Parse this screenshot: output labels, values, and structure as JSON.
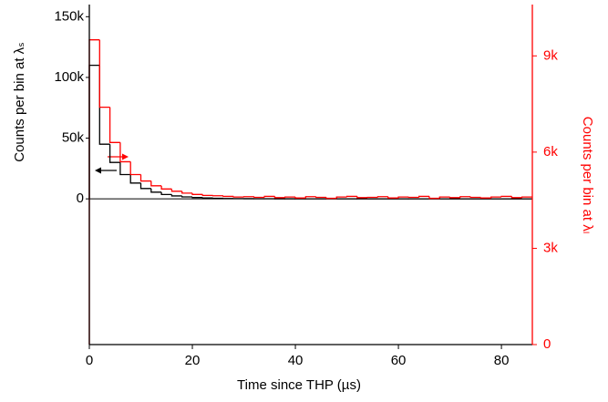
{
  "chart_data": {
    "type": "histogram",
    "xlabel": "Time since THP (µs)",
    "ylabel": "Counts per bin at λₛ",
    "y2label": "Counts per bin at λₗ",
    "bins": [
      0,
      2,
      4,
      6,
      8,
      10,
      12,
      14,
      16,
      18,
      20,
      22,
      24,
      26,
      28,
      30,
      32,
      34,
      36,
      38,
      40,
      42,
      44,
      46,
      48,
      50,
      52,
      54,
      56,
      58,
      60,
      62,
      64,
      66,
      68,
      70,
      72,
      74,
      76,
      78,
      80,
      82,
      84,
      86
    ],
    "series": [
      {
        "color": "#000000",
        "values": [
          110000,
          45000,
          30000,
          20000,
          13000,
          8500,
          5500,
          3600,
          2400,
          1600,
          1100,
          700,
          500,
          300,
          200,
          150,
          100,
          80,
          60,
          50,
          40,
          30,
          30,
          20,
          20,
          20,
          10,
          10,
          10,
          10,
          10,
          0,
          0,
          0,
          0,
          0,
          0,
          0,
          0,
          0,
          0,
          0,
          0
        ]
      },
      {
        "color": "#ff0000",
        "axis": "y2",
        "values": [
          9500,
          7400,
          6300,
          5700,
          5300,
          5100,
          4950,
          4850,
          4780,
          4720,
          4680,
          4650,
          4640,
          4620,
          4600,
          4610,
          4590,
          4620,
          4580,
          4600,
          4570,
          4610,
          4590,
          4560,
          4600,
          4620,
          4580,
          4590,
          4610,
          4570,
          4600,
          4590,
          4620,
          4560,
          4600,
          4580,
          4610,
          4590,
          4570,
          4600,
          4620,
          4580,
          4600
        ]
      }
    ],
    "xlim": [
      0,
      86
    ],
    "xticks": [
      0,
      20,
      40,
      60,
      80
    ],
    "ylim": [
      -120000,
      160000
    ],
    "yticks": [
      0,
      {
        "value": 50000,
        "label": "50k"
      },
      {
        "value": 100000,
        "label": "100k"
      },
      {
        "value": 150000,
        "label": "150k"
      }
    ],
    "y2lim": [
      0,
      10600
    ],
    "y2ticks": [
      0,
      {
        "value": 3000,
        "label": "3k"
      },
      {
        "value": 6000,
        "label": "6k"
      },
      {
        "value": 9000,
        "label": "9k"
      }
    ],
    "y2color": "#ff0000"
  }
}
